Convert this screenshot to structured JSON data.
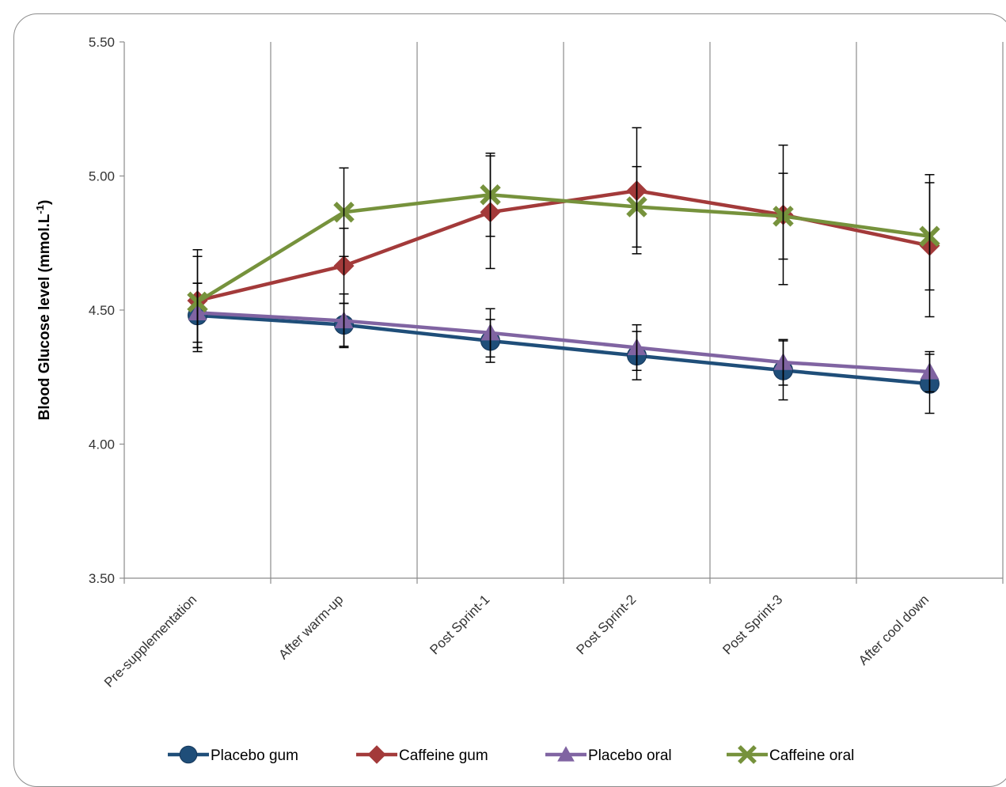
{
  "chart_data": {
    "type": "line",
    "title": "",
    "xlabel": "",
    "ylabel": "Blood Glucose level  (mmol.L",
    "ylabel_superscript": "-1",
    "ylabel_close": ")",
    "ylim": [
      3.5,
      5.5
    ],
    "yticks": [
      "3.50",
      "4.00",
      "4.50",
      "5.00",
      "5.50"
    ],
    "ytick_values": [
      3.5,
      4.0,
      4.5,
      5.0,
      5.5
    ],
    "grid": "vertical",
    "legend_position": "bottom",
    "categories": [
      "Pre-supplementation",
      "After warm-up",
      "Post Sprint-1",
      "Post Sprint-2",
      "Post Sprint-3",
      "After cool down"
    ],
    "series": [
      {
        "name": "Placebo gum",
        "color": "#1f4e79",
        "marker": "circle",
        "values": [
          4.48,
          4.445,
          4.385,
          4.33,
          4.275,
          4.225
        ],
        "error": [
          0.12,
          0.08,
          0.08,
          0.09,
          0.11,
          0.11
        ]
      },
      {
        "name": "Caffeine gum",
        "color": "#a33a3a",
        "marker": "diamond",
        "values": [
          4.535,
          4.665,
          4.865,
          4.945,
          4.855,
          4.74
        ],
        "error": [
          0.19,
          0.14,
          0.21,
          0.235,
          0.26,
          0.265
        ]
      },
      {
        "name": "Placebo oral",
        "color": "#8064a2",
        "marker": "triangle",
        "values": [
          4.49,
          4.46,
          4.415,
          4.36,
          4.305,
          4.27
        ],
        "error": [
          0.11,
          0.1,
          0.09,
          0.085,
          0.085,
          0.075
        ]
      },
      {
        "name": "Caffeine oral",
        "color": "#76923c",
        "marker": "x",
        "values": [
          4.53,
          4.865,
          4.93,
          4.885,
          4.85,
          4.775
        ],
        "error": [
          0.17,
          0.165,
          0.155,
          0.15,
          0.16,
          0.2
        ]
      }
    ]
  }
}
